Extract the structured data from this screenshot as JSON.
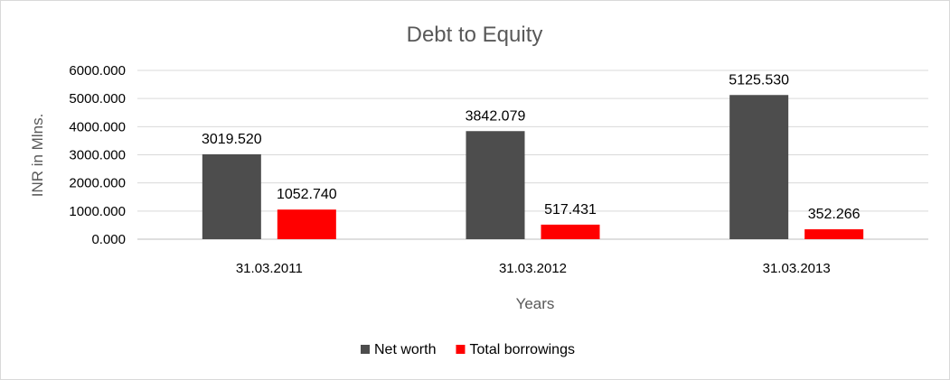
{
  "chart_data": {
    "type": "bar",
    "title": "Debt to Equity",
    "xlabel": "Years",
    "ylabel": "INR in Mlns.",
    "categories": [
      "31.03.2011",
      "31.03.2012",
      "31.03.2013"
    ],
    "series": [
      {
        "name": "Net worth",
        "values": [
          3019.52,
          3842.079,
          5125.53
        ],
        "labels": [
          "3019.520",
          "3842.079",
          "5125.530"
        ],
        "color": "#4d4d4d"
      },
      {
        "name": "Total borrowings",
        "values": [
          1052.74,
          517.431,
          352.266
        ],
        "labels": [
          "1052.740",
          "517.431",
          "352.266"
        ],
        "color": "#ff0000"
      }
    ],
    "ylim": [
      0,
      6000
    ],
    "yticks": [
      "0.000",
      "1000.000",
      "2000.000",
      "3000.000",
      "4000.000",
      "5000.000",
      "6000.000"
    ],
    "grid": true,
    "legend_position": "bottom"
  }
}
